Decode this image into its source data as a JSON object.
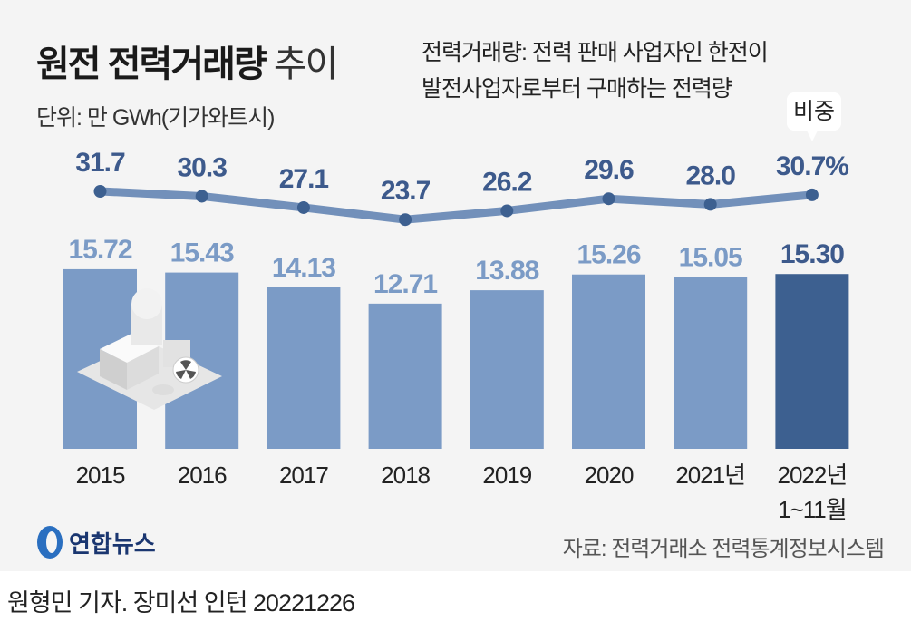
{
  "title": {
    "bold": "원전 전력거래량",
    "light": "추이"
  },
  "unit": "단위: 만 GWh(기가와트시)",
  "note": [
    "전력거래량: 전력 판매 사업자인 한전이",
    "발전사업자로부터 구매하는 전력량"
  ],
  "share_label": "비중",
  "source": "자료: 전력거래소 전력통계정보시스템",
  "logo": "연합뉴스",
  "byline": "원형민 기자. 장미선 인턴  20221226",
  "colors": {
    "bar": "#7b9bc6",
    "bar_highlight": "#3d6090",
    "line": "#7290ba",
    "dot": "#3d6090",
    "bar_label": "#7b9bc6",
    "line_label": "#3d5a8c"
  },
  "chart_data": {
    "type": "bar",
    "categories": [
      "2015",
      "2016",
      "2017",
      "2018",
      "2019",
      "2020",
      "2021년",
      "2022년 1~11월"
    ],
    "series": [
      {
        "name": "전력거래량",
        "unit": "만 GWh",
        "values": [
          15.72,
          15.43,
          14.13,
          12.71,
          13.88,
          15.26,
          15.05,
          15.3
        ],
        "labels": [
          "15.72",
          "15.43",
          "14.13",
          "12.71",
          "13.88",
          "15.26",
          "15.05",
          "15.30"
        ]
      },
      {
        "name": "비중",
        "type": "line",
        "unit": "%",
        "values": [
          31.7,
          30.3,
          27.1,
          23.7,
          26.2,
          29.6,
          28.0,
          30.7
        ],
        "labels": [
          "31.7",
          "30.3",
          "27.1",
          "23.7",
          "26.2",
          "29.6",
          "28.0",
          "30.7%"
        ]
      }
    ],
    "highlight_index": 7
  }
}
